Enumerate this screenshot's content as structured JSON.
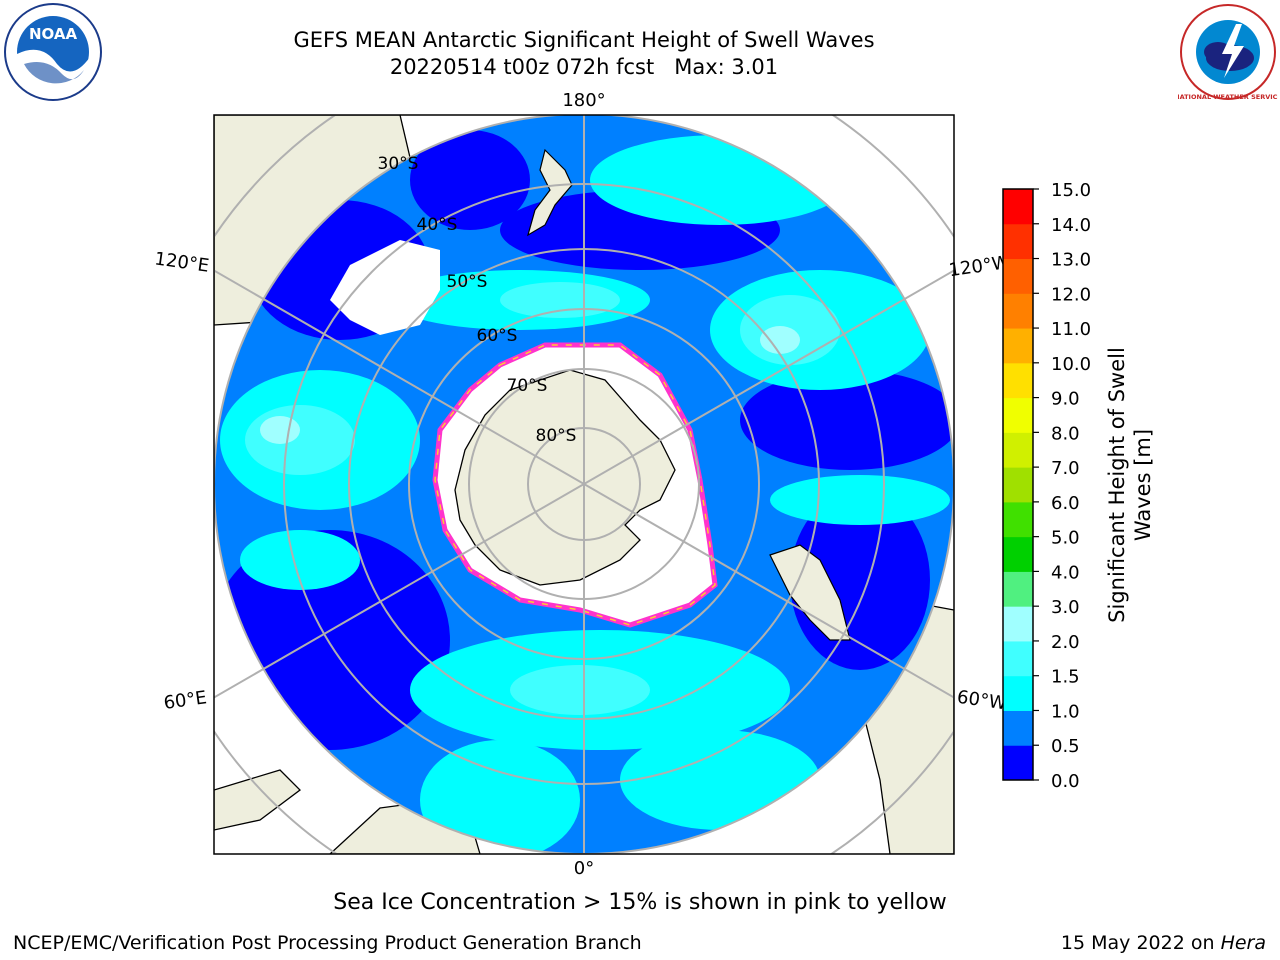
{
  "title": {
    "line1": "GEFS MEAN Antarctic Significant Height of Swell Waves",
    "line2_run": "20220514 t00z 072h fcst",
    "line2_max": "Max: 3.01"
  },
  "map": {
    "projection": "south-polar-stereographic",
    "meridian_labels": [
      "180°",
      "120°E",
      "120°W",
      "60°E",
      "60°W",
      "0°"
    ],
    "parallel_labels": [
      "30°S",
      "40°S",
      "50°S",
      "60°S",
      "70°S",
      "80°S"
    ],
    "ocean_colors": [
      "#0000ff",
      "#0080ff",
      "#00ffff",
      "#40ffff",
      "#a0ffff"
    ],
    "land_color": "#eeeedd",
    "sea_ice_color": "#ffffff",
    "ice_edge_colors": [
      "#ff33cc",
      "#ffcc33"
    ]
  },
  "colorbar": {
    "label_line1": "Significant Height of Swell",
    "label_line2": "Waves [m]",
    "ticks": [
      "0.0",
      "0.5",
      "1.0",
      "1.5",
      "2.0",
      "3.0",
      "4.0",
      "5.0",
      "6.0",
      "7.0",
      "8.0",
      "9.0",
      "10.0",
      "11.0",
      "12.0",
      "13.0",
      "14.0",
      "15.0"
    ],
    "colors": [
      "#0000ff",
      "#0080ff",
      "#00ffff",
      "#40ffff",
      "#a0ffff",
      "#50f080",
      "#00d000",
      "#40e000",
      "#a0e000",
      "#d0f000",
      "#f0ff00",
      "#ffe000",
      "#ffb000",
      "#ff8000",
      "#ff6000",
      "#ff3000",
      "#ff0000"
    ]
  },
  "caption": "Sea Ice Concentration > 15% is shown in pink to yellow",
  "footer": {
    "left": "NCEP/EMC/Verification Post Processing Product Generation Branch",
    "date": "15 May 2022 on",
    "machine": "Hera"
  },
  "logos": {
    "noaa_text": "NOAA",
    "nws_text": "NATIONAL WEATHER SERVICE"
  }
}
